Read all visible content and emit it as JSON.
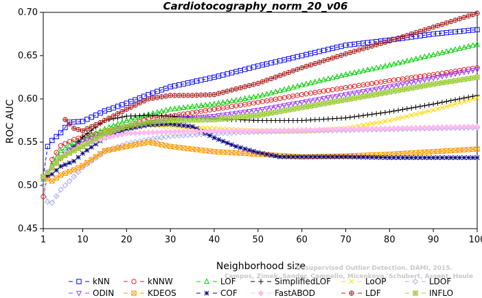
{
  "chart_data": {
    "type": "line",
    "title": "Cardiotocography_norm_20_v06",
    "xlabel": "Neighborhood size",
    "ylabel": "ROC AUC",
    "xlim": [
      1,
      100
    ],
    "ylim": [
      0.45,
      0.7
    ],
    "xticks": [
      1,
      10,
      20,
      30,
      40,
      50,
      60,
      70,
      80,
      90,
      100
    ],
    "yticks": [
      0.45,
      0.5,
      0.55,
      0.6,
      0.65,
      0.7
    ],
    "xtick_labels": [
      "1",
      "10",
      "20",
      "30",
      "40",
      "50",
      "60",
      "70",
      "80",
      "90",
      "100"
    ],
    "ytick_labels": [
      "0.45",
      "0.50",
      "0.55",
      "0.60",
      "0.65",
      "0.70"
    ],
    "legend_position": "bottom",
    "series": [
      {
        "name": "kNN",
        "color": "#0000ff",
        "marker": "square",
        "points": [
          [
            1,
            0.51
          ],
          [
            2,
            0.545
          ],
          [
            3,
            0.552
          ],
          [
            5,
            0.561
          ],
          [
            7,
            0.573
          ],
          [
            10,
            0.574
          ],
          [
            15,
            0.586
          ],
          [
            20,
            0.595
          ],
          [
            25,
            0.605
          ],
          [
            30,
            0.614
          ],
          [
            40,
            0.625
          ],
          [
            50,
            0.638
          ],
          [
            60,
            0.65
          ],
          [
            70,
            0.662
          ],
          [
            80,
            0.668
          ],
          [
            90,
            0.675
          ],
          [
            100,
            0.68
          ]
        ]
      },
      {
        "name": "kNNW",
        "color": "#dd2222",
        "marker": "circle",
        "points": [
          [
            1,
            0.487
          ],
          [
            2,
            0.512
          ],
          [
            3,
            0.53
          ],
          [
            5,
            0.546
          ],
          [
            8,
            0.553
          ],
          [
            10,
            0.556
          ],
          [
            15,
            0.562
          ],
          [
            20,
            0.568
          ],
          [
            25,
            0.577
          ],
          [
            30,
            0.58
          ],
          [
            40,
            0.588
          ],
          [
            50,
            0.596
          ],
          [
            60,
            0.605
          ],
          [
            70,
            0.613
          ],
          [
            80,
            0.621
          ],
          [
            90,
            0.628
          ],
          [
            100,
            0.636
          ]
        ]
      },
      {
        "name": "LOF",
        "color": "#00cc00",
        "marker": "triangle-up",
        "points": [
          [
            1,
            0.507
          ],
          [
            2,
            0.515
          ],
          [
            5,
            0.54
          ],
          [
            8,
            0.549
          ],
          [
            10,
            0.553
          ],
          [
            15,
            0.565
          ],
          [
            20,
            0.575
          ],
          [
            25,
            0.582
          ],
          [
            30,
            0.588
          ],
          [
            40,
            0.594
          ],
          [
            50,
            0.603
          ],
          [
            60,
            0.616
          ],
          [
            70,
            0.628
          ],
          [
            80,
            0.639
          ],
          [
            90,
            0.651
          ],
          [
            100,
            0.663
          ]
        ]
      },
      {
        "name": "SimplifiedLOF",
        "color": "#000000",
        "marker": "plus",
        "points": [
          [
            1,
            0.51
          ],
          [
            3,
            0.52
          ],
          [
            5,
            0.531
          ],
          [
            8,
            0.545
          ],
          [
            10,
            0.556
          ],
          [
            15,
            0.575
          ],
          [
            20,
            0.58
          ],
          [
            25,
            0.581
          ],
          [
            30,
            0.58
          ],
          [
            40,
            0.577
          ],
          [
            50,
            0.575
          ],
          [
            60,
            0.575
          ],
          [
            70,
            0.578
          ],
          [
            80,
            0.585
          ],
          [
            90,
            0.594
          ],
          [
            100,
            0.604
          ]
        ]
      },
      {
        "name": "LoOP",
        "color": "#ffd800",
        "marker": "x",
        "points": [
          [
            1,
            0.51
          ],
          [
            3,
            0.519
          ],
          [
            5,
            0.53
          ],
          [
            8,
            0.542
          ],
          [
            10,
            0.55
          ],
          [
            15,
            0.563
          ],
          [
            20,
            0.567
          ],
          [
            25,
            0.569
          ],
          [
            30,
            0.568
          ],
          [
            40,
            0.566
          ],
          [
            50,
            0.563
          ],
          [
            60,
            0.562
          ],
          [
            70,
            0.566
          ],
          [
            80,
            0.575
          ],
          [
            90,
            0.587
          ],
          [
            100,
            0.601
          ]
        ]
      },
      {
        "name": "LDOF",
        "color": "#aaaaee",
        "marker": "diamond",
        "points": [
          [
            1,
            0.5
          ],
          [
            2,
            0.481
          ],
          [
            3,
            0.48
          ],
          [
            5,
            0.495
          ],
          [
            8,
            0.51
          ],
          [
            10,
            0.521
          ],
          [
            15,
            0.539
          ],
          [
            20,
            0.548
          ],
          [
            25,
            0.553
          ],
          [
            30,
            0.557
          ],
          [
            40,
            0.56
          ],
          [
            50,
            0.562
          ],
          [
            60,
            0.563
          ],
          [
            70,
            0.564
          ],
          [
            80,
            0.565
          ],
          [
            90,
            0.566
          ],
          [
            100,
            0.567
          ]
        ]
      },
      {
        "name": "ODIN",
        "color": "#9933ff",
        "marker": "triangle-down",
        "points": [
          [
            1,
            0.508
          ],
          [
            3,
            0.52
          ],
          [
            5,
            0.533
          ],
          [
            8,
            0.544
          ],
          [
            10,
            0.551
          ],
          [
            15,
            0.56
          ],
          [
            20,
            0.567
          ],
          [
            25,
            0.572
          ],
          [
            30,
            0.576
          ],
          [
            40,
            0.58
          ],
          [
            50,
            0.587
          ],
          [
            60,
            0.596
          ],
          [
            70,
            0.605
          ],
          [
            80,
            0.614
          ],
          [
            90,
            0.624
          ],
          [
            100,
            0.634
          ]
        ]
      },
      {
        "name": "KDEOS",
        "color": "#ff9900",
        "marker": "square-x",
        "points": [
          [
            1,
            0.51
          ],
          [
            3,
            0.505
          ],
          [
            5,
            0.512
          ],
          [
            8,
            0.518
          ],
          [
            10,
            0.523
          ],
          [
            15,
            0.54
          ],
          [
            20,
            0.545
          ],
          [
            25,
            0.55
          ],
          [
            30,
            0.545
          ],
          [
            40,
            0.539
          ],
          [
            50,
            0.536
          ],
          [
            60,
            0.533
          ],
          [
            70,
            0.534
          ],
          [
            80,
            0.536
          ],
          [
            90,
            0.539
          ],
          [
            100,
            0.542
          ]
        ]
      },
      {
        "name": "COF",
        "color": "#000080",
        "marker": "asterisk",
        "points": [
          [
            1,
            0.51
          ],
          [
            3,
            0.513
          ],
          [
            5,
            0.522
          ],
          [
            8,
            0.528
          ],
          [
            10,
            0.537
          ],
          [
            15,
            0.555
          ],
          [
            20,
            0.565
          ],
          [
            25,
            0.57
          ],
          [
            30,
            0.571
          ],
          [
            35,
            0.568
          ],
          [
            40,
            0.555
          ],
          [
            45,
            0.545
          ],
          [
            50,
            0.538
          ],
          [
            55,
            0.533
          ],
          [
            60,
            0.533
          ],
          [
            70,
            0.533
          ],
          [
            80,
            0.532
          ],
          [
            90,
            0.532
          ],
          [
            100,
            0.532
          ]
        ]
      },
      {
        "name": "FastABOD",
        "color": "#ffbbee",
        "marker": "diamond-filled",
        "points": [
          [
            1,
            0.51
          ],
          [
            3,
            0.52
          ],
          [
            5,
            0.533
          ],
          [
            8,
            0.541
          ],
          [
            10,
            0.546
          ],
          [
            15,
            0.555
          ],
          [
            20,
            0.56
          ],
          [
            25,
            0.561
          ],
          [
            30,
            0.562
          ],
          [
            40,
            0.563
          ],
          [
            50,
            0.563
          ],
          [
            60,
            0.564
          ],
          [
            70,
            0.565
          ],
          [
            80,
            0.566
          ],
          [
            90,
            0.567
          ],
          [
            100,
            0.568
          ]
        ]
      },
      {
        "name": "LDF",
        "color": "#aa2222",
        "marker": "circle-plus",
        "points": [
          [
            6,
            0.576
          ],
          [
            8,
            0.566
          ],
          [
            10,
            0.563
          ],
          [
            15,
            0.575
          ],
          [
            20,
            0.588
          ],
          [
            25,
            0.6
          ],
          [
            30,
            0.604
          ],
          [
            35,
            0.604
          ],
          [
            40,
            0.605
          ],
          [
            50,
            0.618
          ],
          [
            60,
            0.636
          ],
          [
            70,
            0.652
          ],
          [
            80,
            0.667
          ],
          [
            90,
            0.683
          ],
          [
            100,
            0.699
          ]
        ]
      },
      {
        "name": "INFLO",
        "color": "#99cc33",
        "marker": "square-star",
        "points": [
          [
            1,
            0.51
          ],
          [
            3,
            0.52
          ],
          [
            5,
            0.532
          ],
          [
            8,
            0.54
          ],
          [
            10,
            0.545
          ],
          [
            15,
            0.56
          ],
          [
            20,
            0.568
          ],
          [
            25,
            0.573
          ],
          [
            30,
            0.575
          ],
          [
            40,
            0.576
          ],
          [
            50,
            0.581
          ],
          [
            60,
            0.59
          ],
          [
            70,
            0.599
          ],
          [
            80,
            0.608
          ],
          [
            90,
            0.617
          ],
          [
            100,
            0.625
          ]
        ]
      }
    ],
    "watermark": [
      "Unsupervised Outlier Detection. DAMI, 2015.",
      "Campos, Zimek, Sander, Campello, Micenkova, Schubert, Assent, Houle"
    ]
  }
}
